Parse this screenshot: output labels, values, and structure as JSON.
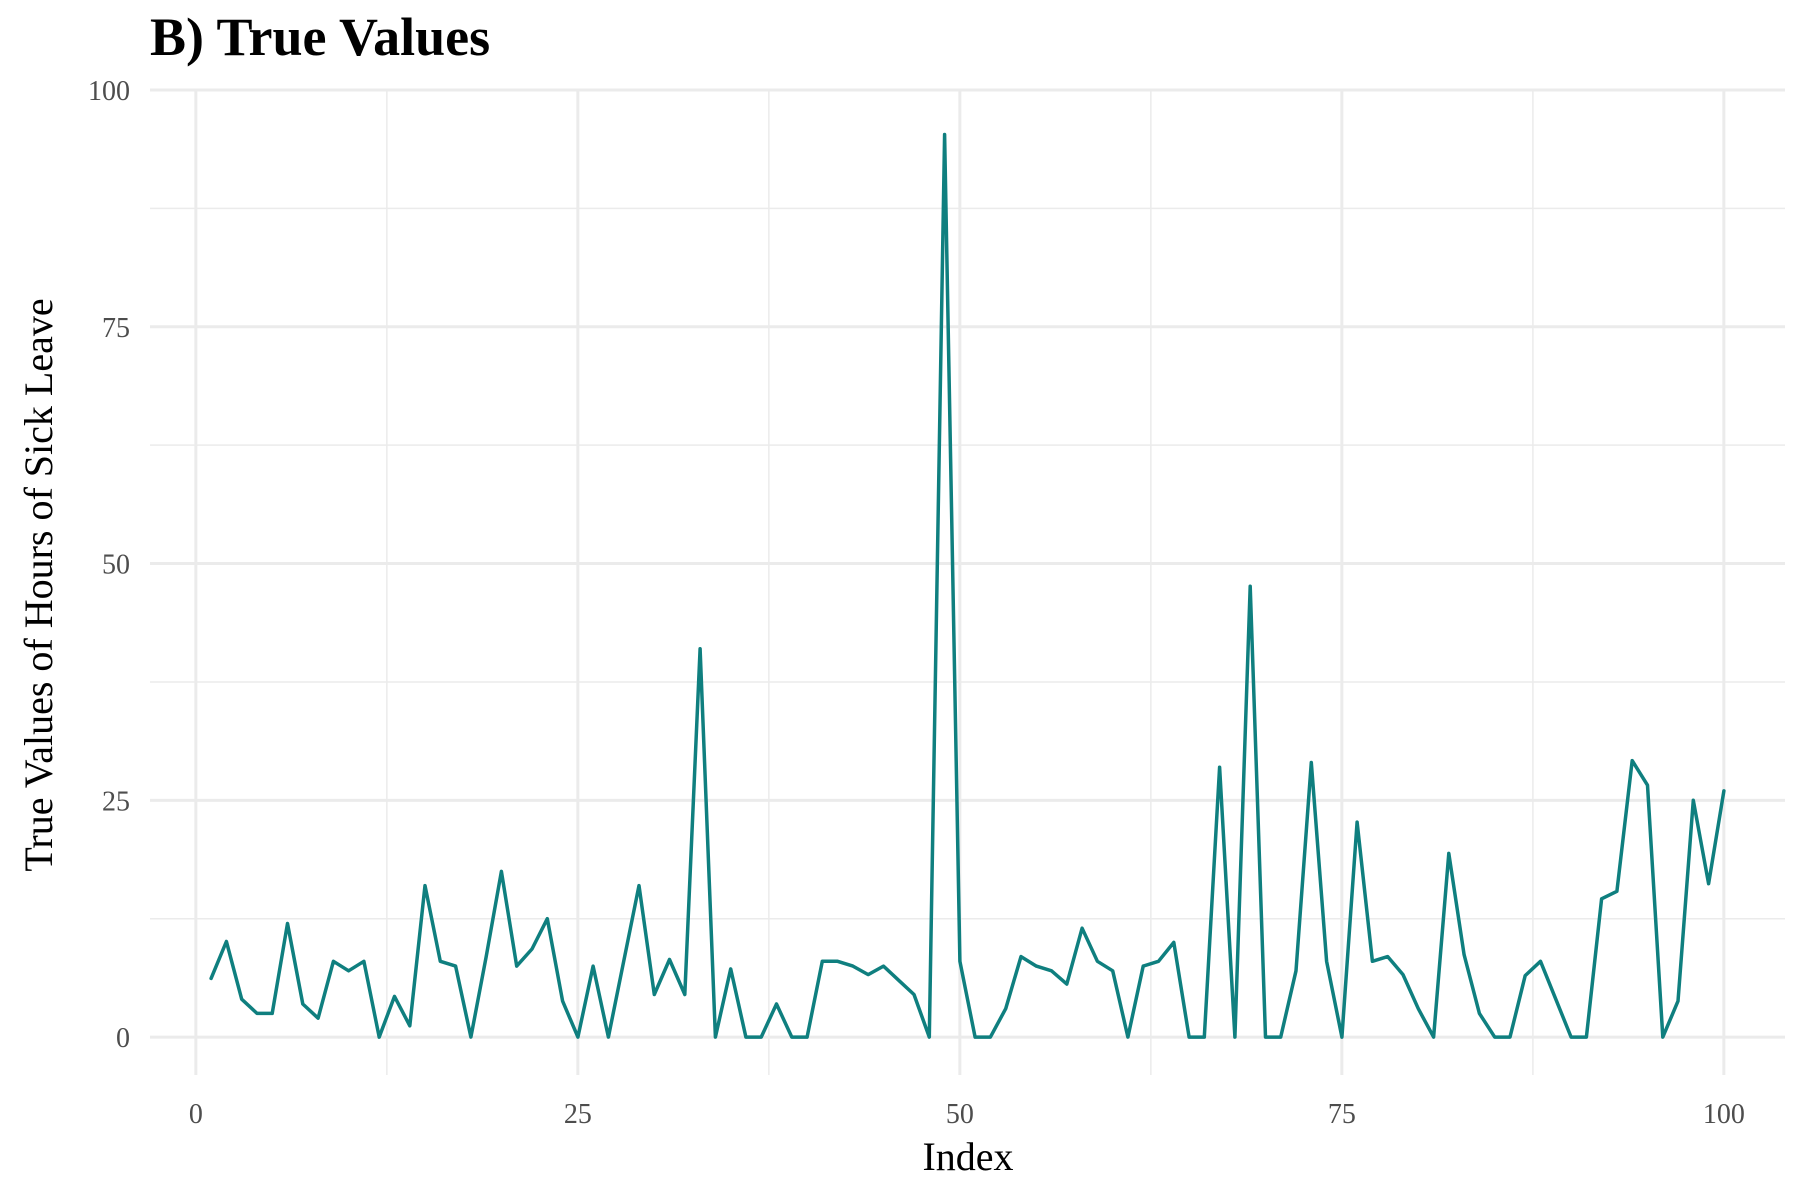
{
  "chart_data": {
    "type": "line",
    "title": "B) True Values",
    "xlabel": "Index",
    "ylabel": "True Values of Hours of Sick Leave",
    "xlim": [
      -3,
      104
    ],
    "ylim": [
      -4,
      100
    ],
    "x_ticks": [
      0,
      25,
      50,
      75,
      100
    ],
    "y_ticks": [
      0,
      25,
      50,
      75,
      100
    ],
    "x_minor_ticks": [
      12.5,
      37.5,
      62.5,
      87.5
    ],
    "y_minor_ticks": [
      12.5,
      37.5,
      62.5,
      87.5
    ],
    "grid": true,
    "legend": "none",
    "series": [
      {
        "color": "#0f7f7f",
        "x": [
          1,
          2,
          3,
          4,
          5,
          6,
          7,
          8,
          9,
          10,
          11,
          12,
          13,
          14,
          15,
          16,
          17,
          18,
          19,
          20,
          21,
          22,
          23,
          24,
          25,
          26,
          27,
          28,
          29,
          30,
          31,
          32,
          33,
          34,
          35,
          36,
          37,
          38,
          39,
          40,
          41,
          42,
          43,
          44,
          45,
          46,
          47,
          48,
          49,
          50,
          51,
          52,
          53,
          54,
          55,
          56,
          57,
          58,
          59,
          60,
          61,
          62,
          63,
          64,
          65,
          66,
          67,
          68,
          69,
          70,
          71,
          72,
          73,
          74,
          75,
          76,
          77,
          78,
          79,
          80,
          81,
          82,
          83,
          84,
          85,
          86,
          87,
          88,
          89,
          90,
          91,
          92,
          93,
          94,
          95,
          96,
          97,
          98,
          99,
          100
        ],
        "values": [
          6.2,
          10.1,
          4,
          2.5,
          2.5,
          12,
          3.5,
          2,
          8,
          7,
          8,
          0,
          4.3,
          1.2,
          16,
          8,
          7.5,
          0,
          8.5,
          17.5,
          7.5,
          9.3,
          12.5,
          3.8,
          0,
          7.5,
          0,
          8,
          16,
          4.5,
          8.2,
          4.5,
          41,
          0,
          7.2,
          0,
          0,
          3.5,
          0,
          0,
          8,
          8,
          7.5,
          6.6,
          7.5,
          6,
          4.5,
          0,
          95.3,
          8,
          0,
          0,
          3,
          8.5,
          7.5,
          7,
          5.6,
          11.5,
          8,
          7,
          0,
          7.5,
          8,
          10,
          0,
          0,
          28.5,
          0,
          47.6,
          0,
          0,
          7,
          29,
          8,
          0,
          22.7,
          8,
          8.5,
          6.6,
          3,
          0,
          19.4,
          8.7,
          2.5,
          0,
          0,
          6.5,
          8,
          4,
          0,
          0,
          14.6,
          15.4,
          29.2,
          26.6,
          0,
          3.8,
          25,
          16.2,
          26
        ]
      }
    ]
  }
}
